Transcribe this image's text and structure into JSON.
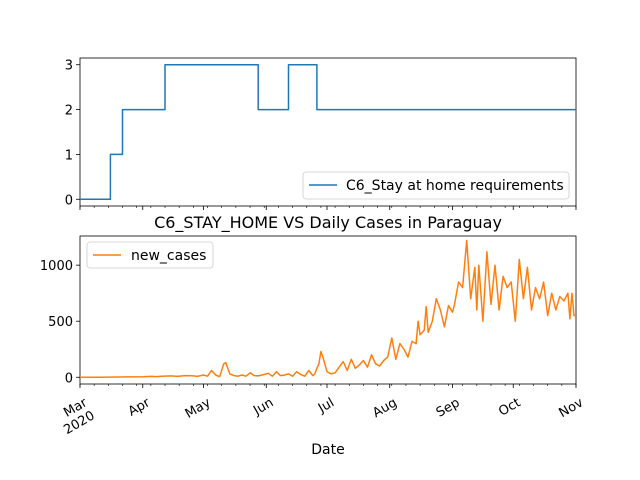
{
  "chart_data": [
    {
      "type": "line",
      "title": "",
      "xlabel": "",
      "ylabel": "",
      "ylim": [
        -0.15,
        3.15
      ],
      "xlim": [
        "2020-03-01",
        "2020-11-01"
      ],
      "yticks": [
        0,
        1,
        2,
        3
      ],
      "ytick_labels": [
        "0",
        "1",
        "2",
        "3"
      ],
      "legend_position": "lower-right",
      "series": [
        {
          "name": "C6_Stay at home requirements",
          "color": "#1f77b4",
          "step": true,
          "x": [
            "2020-03-01",
            "2020-03-16",
            "2020-03-21",
            "2020-03-22",
            "2020-04-11",
            "2020-04-12",
            "2020-05-27",
            "2020-05-28",
            "2020-06-11",
            "2020-06-12",
            "2020-06-25",
            "2020-06-26",
            "2020-11-01"
          ],
          "values": [
            0,
            1,
            1,
            2,
            2,
            3,
            3,
            2,
            2,
            3,
            3,
            2,
            2
          ]
        }
      ]
    },
    {
      "type": "line",
      "title": "C6_STAY_HOME VS Daily Cases in Paraguay",
      "xlabel": "Date",
      "ylabel": "",
      "ylim": [
        -60,
        1260
      ],
      "xlim": [
        "2020-03-01",
        "2020-11-01"
      ],
      "yticks": [
        0,
        500,
        1000
      ],
      "ytick_labels": [
        "0",
        "500",
        "1000"
      ],
      "xticks": [
        "2020-03-01",
        "2020-04-01",
        "2020-05-01",
        "2020-06-01",
        "2020-07-01",
        "2020-08-01",
        "2020-09-01",
        "2020-10-01",
        "2020-11-01"
      ],
      "xtick_labels": [
        "Mar\n2020",
        "Apr",
        "May",
        "Jun",
        "Jul",
        "Aug",
        "Sep",
        "Oct",
        "Nov"
      ],
      "legend_position": "upper-left",
      "series": [
        {
          "name": "new_cases",
          "color": "#ff7f0e",
          "x": [
            "2020-03-01",
            "2020-03-10",
            "2020-03-20",
            "2020-03-25",
            "2020-04-01",
            "2020-04-05",
            "2020-04-08",
            "2020-04-10",
            "2020-04-15",
            "2020-04-18",
            "2020-04-22",
            "2020-04-26",
            "2020-04-28",
            "2020-05-01",
            "2020-05-03",
            "2020-05-05",
            "2020-05-07",
            "2020-05-09",
            "2020-05-11",
            "2020-05-12",
            "2020-05-14",
            "2020-05-16",
            "2020-05-18",
            "2020-05-20",
            "2020-05-22",
            "2020-05-24",
            "2020-05-26",
            "2020-05-28",
            "2020-05-30",
            "2020-06-02",
            "2020-06-04",
            "2020-06-06",
            "2020-06-08",
            "2020-06-10",
            "2020-06-12",
            "2020-06-14",
            "2020-06-16",
            "2020-06-18",
            "2020-06-20",
            "2020-06-22",
            "2020-06-24",
            "2020-06-25",
            "2020-06-26",
            "2020-06-27",
            "2020-06-28",
            "2020-06-29",
            "2020-07-01",
            "2020-07-03",
            "2020-07-05",
            "2020-07-07",
            "2020-07-09",
            "2020-07-11",
            "2020-07-13",
            "2020-07-15",
            "2020-07-17",
            "2020-07-19",
            "2020-07-21",
            "2020-07-23",
            "2020-07-25",
            "2020-07-27",
            "2020-07-29",
            "2020-07-31",
            "2020-08-02",
            "2020-08-04",
            "2020-08-06",
            "2020-08-08",
            "2020-08-10",
            "2020-08-12",
            "2020-08-14",
            "2020-08-15",
            "2020-08-16",
            "2020-08-18",
            "2020-08-19",
            "2020-08-20",
            "2020-08-22",
            "2020-08-24",
            "2020-08-26",
            "2020-08-28",
            "2020-08-30",
            "2020-09-01",
            "2020-09-02",
            "2020-09-04",
            "2020-09-06",
            "2020-09-08",
            "2020-09-10",
            "2020-09-12",
            "2020-09-13",
            "2020-09-14",
            "2020-09-16",
            "2020-09-18",
            "2020-09-20",
            "2020-09-22",
            "2020-09-24",
            "2020-09-26",
            "2020-09-28",
            "2020-09-30",
            "2020-10-02",
            "2020-10-04",
            "2020-10-06",
            "2020-10-08",
            "2020-10-10",
            "2020-10-12",
            "2020-10-14",
            "2020-10-16",
            "2020-10-18",
            "2020-10-20",
            "2020-10-22",
            "2020-10-24",
            "2020-10-26",
            "2020-10-28",
            "2020-10-29",
            "2020-10-30",
            "2020-10-31",
            "2020-11-01"
          ],
          "values": [
            0,
            0,
            2,
            3,
            5,
            8,
            6,
            10,
            12,
            8,
            15,
            12,
            8,
            20,
            10,
            60,
            20,
            5,
            120,
            130,
            30,
            15,
            10,
            20,
            10,
            40,
            15,
            12,
            20,
            35,
            10,
            50,
            15,
            20,
            30,
            10,
            50,
            25,
            10,
            60,
            15,
            30,
            80,
            120,
            230,
            180,
            50,
            30,
            40,
            90,
            140,
            60,
            160,
            80,
            110,
            150,
            90,
            200,
            120,
            100,
            150,
            180,
            350,
            160,
            300,
            250,
            180,
            320,
            300,
            500,
            380,
            420,
            630,
            400,
            500,
            700,
            600,
            450,
            640,
            580,
            650,
            850,
            800,
            1220,
            700,
            980,
            600,
            1000,
            500,
            1120,
            650,
            1000,
            600,
            900,
            800,
            850,
            500,
            1050,
            700,
            980,
            600,
            800,
            700,
            850,
            550,
            750,
            600,
            720,
            680,
            750,
            520,
            750,
            550,
            550
          ]
        }
      ]
    }
  ]
}
